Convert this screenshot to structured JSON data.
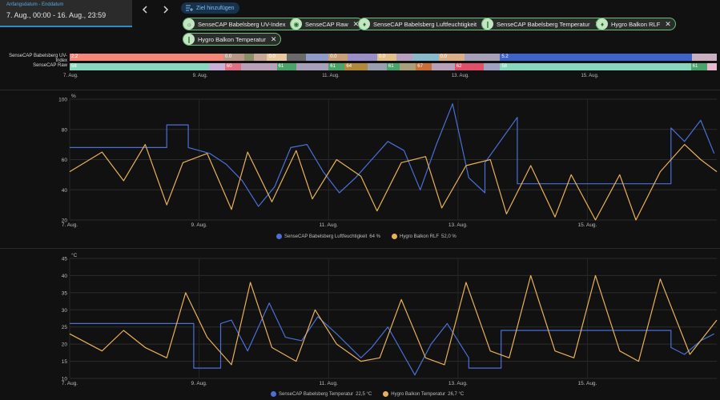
{
  "date_range": {
    "label": "Anfangsdatum - Enddatum",
    "value": "7. Aug., 00:00 - 16. Aug., 23:59"
  },
  "nav": {
    "prev_icon": "chevron-left-icon",
    "next_icon": "chevron-right-icon"
  },
  "add_target": {
    "label": "Ziel hinzufügen",
    "icon": "target-add-icon"
  },
  "targets": [
    {
      "label": "SenseCAP Babelsberg UV-Index",
      "icon": "sun-icon"
    },
    {
      "label": "SenseCAP Raw",
      "icon": "eye-icon"
    },
    {
      "label": "SenseCAP Babelsberg Luftfeuchtigkeit",
      "icon": "water-drop-icon"
    },
    {
      "label": "SenseCAP Babelsberg Temperatur",
      "icon": "thermometer-icon"
    },
    {
      "label": "Hygro Balkon RLF",
      "icon": "water-drop-icon"
    },
    {
      "label": "Hygro Balkon Temperatur",
      "icon": "thermometer-icon"
    }
  ],
  "timeline": {
    "rows": [
      {
        "label": "SenseCAP Babelsberg UV-Index",
        "segments": [
          {
            "start": 0.0,
            "end": 0.2375,
            "color": "#f4877a",
            "text": "2.2"
          },
          {
            "start": 0.2375,
            "end": 0.27,
            "color": "#b9988a",
            "text": "0.0"
          },
          {
            "start": 0.27,
            "end": 0.285,
            "color": "#8a8f6a",
            "text": ""
          },
          {
            "start": 0.285,
            "end": 0.305,
            "color": "#c7a89a",
            "text": ""
          },
          {
            "start": 0.305,
            "end": 0.335,
            "color": "#e8c9a0",
            "text": "0.0"
          },
          {
            "start": 0.335,
            "end": 0.365,
            "color": "#6a6a6a",
            "text": ""
          },
          {
            "start": 0.365,
            "end": 0.4,
            "color": "#8f9ac7",
            "text": ""
          },
          {
            "start": 0.4,
            "end": 0.43,
            "color": "#c7a07a",
            "text": "0.0"
          },
          {
            "start": 0.43,
            "end": 0.475,
            "color": "#9a8fc7",
            "text": ""
          },
          {
            "start": 0.475,
            "end": 0.505,
            "color": "#e4c08a",
            "text": "0.0"
          },
          {
            "start": 0.505,
            "end": 0.53,
            "color": "#b9a0c0",
            "text": ""
          },
          {
            "start": 0.53,
            "end": 0.57,
            "color": "#8ab9c9",
            "text": ""
          },
          {
            "start": 0.57,
            "end": 0.61,
            "color": "#d9b08a",
            "text": "0.0"
          },
          {
            "start": 0.61,
            "end": 0.665,
            "color": "#a7a0b9",
            "text": ""
          },
          {
            "start": 0.665,
            "end": 0.962,
            "color": "#3f63c9",
            "text": "5.2"
          },
          {
            "start": 0.962,
            "end": 1.0,
            "color": "#c9b0c0",
            "text": ""
          }
        ]
      },
      {
        "label": "SenseCAP Raw",
        "segments": [
          {
            "start": 0.0,
            "end": 0.215,
            "color": "#88d6bd",
            "text": "58"
          },
          {
            "start": 0.215,
            "end": 0.24,
            "color": "#c8b0d8",
            "text": ""
          },
          {
            "start": 0.24,
            "end": 0.265,
            "color": "#e07083",
            "text": "60"
          },
          {
            "start": 0.265,
            "end": 0.32,
            "color": "#b9a0b9",
            "text": ""
          },
          {
            "start": 0.32,
            "end": 0.35,
            "color": "#4aa36a",
            "text": "61"
          },
          {
            "start": 0.35,
            "end": 0.4,
            "color": "#a7a0b9",
            "text": ""
          },
          {
            "start": 0.4,
            "end": 0.425,
            "color": "#4aa36a",
            "text": "61"
          },
          {
            "start": 0.425,
            "end": 0.46,
            "color": "#b08a3a",
            "text": "64"
          },
          {
            "start": 0.46,
            "end": 0.49,
            "color": "#9aa0b0",
            "text": ""
          },
          {
            "start": 0.49,
            "end": 0.51,
            "color": "#4aa36a",
            "text": "61"
          },
          {
            "start": 0.51,
            "end": 0.535,
            "color": "#a7a07a",
            "text": ""
          },
          {
            "start": 0.535,
            "end": 0.56,
            "color": "#c9703a",
            "text": "67"
          },
          {
            "start": 0.56,
            "end": 0.595,
            "color": "#b9a0b9",
            "text": ""
          },
          {
            "start": 0.595,
            "end": 0.64,
            "color": "#e0506a",
            "text": "62"
          },
          {
            "start": 0.64,
            "end": 0.665,
            "color": "#a0a0c0",
            "text": ""
          },
          {
            "start": 0.665,
            "end": 0.96,
            "color": "#88d6bd",
            "text": "58"
          },
          {
            "start": 0.96,
            "end": 0.985,
            "color": "#4aa36a",
            "text": "61"
          },
          {
            "start": 0.985,
            "end": 1.0,
            "color": "#e8b9d0",
            "text": ""
          }
        ]
      }
    ],
    "axis_labels": [
      "7. Aug.",
      "9. Aug.",
      "11. Aug.",
      "13. Aug.",
      "15. Aug."
    ]
  },
  "chart_data": [
    {
      "type": "line",
      "unit": "%",
      "ylim": [
        20,
        100
      ],
      "yticks": [
        20,
        40,
        60,
        80,
        100
      ],
      "xlim": [
        "2023-08-07T00:00",
        "2023-08-16T23:59"
      ],
      "xticks": [
        "7. Aug.",
        "9. Aug.",
        "11. Aug.",
        "13. Aug.",
        "15. Aug."
      ],
      "grid": true,
      "legend_position": "bottom-center",
      "series": [
        {
          "name": "SenseCAP Babelsberg Luftfeuchtigkeit",
          "legend_value": "64 %",
          "color": "#4a6fd6",
          "x": [
            "2023-08-07T00:00",
            "2023-08-08T12:00",
            "2023-08-08T12:00",
            "2023-08-08T20:00",
            "2023-08-08T20:00",
            "2023-08-09T04:00",
            "2023-08-09T10:00",
            "2023-08-09T16:00",
            "2023-08-09T22:00",
            "2023-08-10T04:00",
            "2023-08-10T10:00",
            "2023-08-10T16:00",
            "2023-08-10T22:00",
            "2023-08-11T04:00",
            "2023-08-11T10:00",
            "2023-08-11T16:00",
            "2023-08-11T22:00",
            "2023-08-12T04:00",
            "2023-08-12T10:00",
            "2023-08-12T16:00",
            "2023-08-12T22:00",
            "2023-08-13T04:00",
            "2023-08-13T10:00",
            "2023-08-13T10:00",
            "2023-08-13T22:00",
            "2023-08-13T22:00",
            "2023-08-16T07:00",
            "2023-08-16T07:00",
            "2023-08-16T12:00",
            "2023-08-16T18:00",
            "2023-08-16T23:00"
          ],
          "y": [
            68,
            68,
            83,
            83,
            68,
            64,
            57,
            46,
            29,
            42,
            68,
            70,
            52,
            38,
            48,
            60,
            72,
            66,
            40,
            70,
            97,
            48,
            38,
            58,
            88,
            44,
            44,
            81,
            72,
            86,
            64
          ]
        },
        {
          "name": "Hygro Balkon RLF",
          "legend_value": "52,0 %",
          "color": "#e8b159",
          "x": [
            "2023-08-07T00:00",
            "2023-08-07T12:00",
            "2023-08-07T20:00",
            "2023-08-08T04:00",
            "2023-08-08T12:00",
            "2023-08-08T18:00",
            "2023-08-09T03:00",
            "2023-08-09T12:00",
            "2023-08-09T18:00",
            "2023-08-10T03:00",
            "2023-08-10T12:00",
            "2023-08-10T18:00",
            "2023-08-11T03:00",
            "2023-08-11T12:00",
            "2023-08-11T18:00",
            "2023-08-12T03:00",
            "2023-08-12T12:00",
            "2023-08-12T18:00",
            "2023-08-13T03:00",
            "2023-08-13T12:00",
            "2023-08-13T18:00",
            "2023-08-14T03:00",
            "2023-08-14T12:00",
            "2023-08-14T18:00",
            "2023-08-15T03:00",
            "2023-08-15T12:00",
            "2023-08-15T18:00",
            "2023-08-16T03:00",
            "2023-08-16T12:00",
            "2023-08-16T18:00",
            "2023-08-16T23:59"
          ],
          "y": [
            52,
            65,
            46,
            70,
            30,
            58,
            64,
            27,
            65,
            32,
            66,
            34,
            60,
            49,
            26,
            58,
            62,
            28,
            56,
            60,
            24,
            56,
            22,
            50,
            20,
            50,
            20,
            52,
            70,
            60,
            52
          ]
        }
      ]
    },
    {
      "type": "line",
      "unit": "°C",
      "ylim": [
        10,
        45
      ],
      "yticks": [
        10,
        15,
        20,
        25,
        30,
        35,
        40,
        45
      ],
      "xlim": [
        "2023-08-07T00:00",
        "2023-08-16T23:59"
      ],
      "xticks": [
        "7. Aug.",
        "9. Aug.",
        "11. Aug.",
        "13. Aug.",
        "15. Aug."
      ],
      "grid": true,
      "legend_position": "bottom-center",
      "series": [
        {
          "name": "SenseCAP Babelsberg Temperatur",
          "legend_value": "22,5 °C",
          "color": "#4a6fd6",
          "x": [
            "2023-08-07T00:00",
            "2023-08-08T22:00",
            "2023-08-08T22:00",
            "2023-08-09T08:00",
            "2023-08-09T08:00",
            "2023-08-09T12:00",
            "2023-08-09T18:00",
            "2023-08-10T02:00",
            "2023-08-10T08:00",
            "2023-08-10T14:00",
            "2023-08-10T20:00",
            "2023-08-11T03:00",
            "2023-08-11T12:00",
            "2023-08-11T16:00",
            "2023-08-11T22:00",
            "2023-08-12T08:00",
            "2023-08-12T14:00",
            "2023-08-12T20:00",
            "2023-08-13T04:00",
            "2023-08-13T04:00",
            "2023-08-13T16:00",
            "2023-08-13T16:00",
            "2023-08-16T07:00",
            "2023-08-16T07:00",
            "2023-08-16T12:00",
            "2023-08-16T18:00",
            "2023-08-16T23:00"
          ],
          "y": [
            26,
            26,
            13,
            13,
            26,
            27,
            18,
            32,
            22,
            21,
            28,
            23,
            16,
            19,
            25,
            11,
            20,
            26,
            16,
            13,
            13,
            24,
            24,
            19,
            17,
            21,
            23
          ]
        },
        {
          "name": "Hygro Balkon Temperatur",
          "legend_value": "26,7 °C",
          "color": "#e8b159",
          "x": [
            "2023-08-07T00:00",
            "2023-08-07T12:00",
            "2023-08-07T20:00",
            "2023-08-08T04:00",
            "2023-08-08T12:00",
            "2023-08-08T19:00",
            "2023-08-09T03:00",
            "2023-08-09T12:00",
            "2023-08-09T19:00",
            "2023-08-10T03:00",
            "2023-08-10T12:00",
            "2023-08-10T19:00",
            "2023-08-11T03:00",
            "2023-08-11T12:00",
            "2023-08-11T19:00",
            "2023-08-12T03:00",
            "2023-08-12T12:00",
            "2023-08-12T19:00",
            "2023-08-13T03:00",
            "2023-08-13T12:00",
            "2023-08-13T19:00",
            "2023-08-14T03:00",
            "2023-08-14T12:00",
            "2023-08-14T19:00",
            "2023-08-15T03:00",
            "2023-08-15T12:00",
            "2023-08-15T19:00",
            "2023-08-16T03:00",
            "2023-08-16T14:00",
            "2023-08-16T23:59"
          ],
          "y": [
            23,
            18,
            24,
            19,
            16,
            35,
            22,
            14,
            38,
            19,
            15,
            30,
            20,
            15,
            16,
            33,
            16,
            14,
            38,
            18,
            16,
            40,
            18,
            16,
            40,
            18,
            15,
            39,
            17,
            27
          ]
        }
      ]
    }
  ]
}
